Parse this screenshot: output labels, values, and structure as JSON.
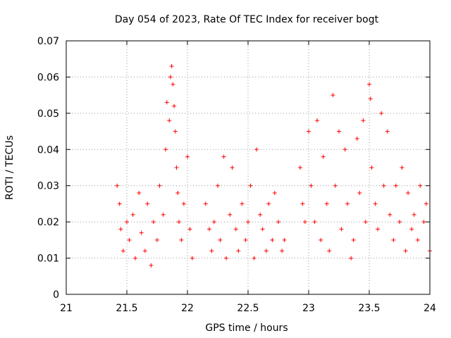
{
  "chart_data": {
    "type": "scatter",
    "title": "Day 054 of 2023, Rate Of TEC Index for receiver bogt",
    "xlabel": "GPS time / hours",
    "ylabel": "ROTI / TECUs",
    "xlim": [
      21,
      24
    ],
    "ylim": [
      0,
      0.07
    ],
    "x_ticks": [
      21,
      21.5,
      22,
      22.5,
      23,
      23.5,
      24
    ],
    "x_tick_labels": [
      "21",
      "21.5",
      "22",
      "22.5",
      "23",
      "23.5",
      "24"
    ],
    "y_ticks": [
      0,
      0.01,
      0.02,
      0.03,
      0.04,
      0.05,
      0.06,
      0.07
    ],
    "y_tick_labels": [
      "0",
      "0.01",
      "0.02",
      "0.03",
      "0.04",
      "0.05",
      "0.06",
      "0.07"
    ],
    "grid": true,
    "marker": "+",
    "color": "#ff0000",
    "series": [
      {
        "name": "ROTI",
        "x": [
          21.42,
          21.44,
          21.45,
          21.47,
          21.5,
          21.52,
          21.55,
          21.57,
          21.6,
          21.62,
          21.65,
          21.67,
          21.7,
          21.72,
          21.75,
          21.77,
          21.8,
          21.82,
          21.83,
          21.85,
          21.86,
          21.87,
          21.88,
          21.89,
          21.9,
          21.91,
          21.92,
          21.93,
          21.95,
          21.97,
          22.0,
          22.02,
          22.04,
          22.15,
          22.18,
          22.2,
          22.22,
          22.25,
          22.27,
          22.3,
          22.32,
          22.35,
          22.37,
          22.4,
          22.42,
          22.45,
          22.48,
          22.5,
          22.52,
          22.55,
          22.57,
          22.6,
          22.62,
          22.65,
          22.67,
          22.7,
          22.72,
          22.75,
          22.78,
          22.8,
          22.93,
          22.95,
          22.97,
          23.0,
          23.02,
          23.05,
          23.07,
          23.1,
          23.12,
          23.15,
          23.17,
          23.2,
          23.22,
          23.25,
          23.27,
          23.3,
          23.32,
          23.35,
          23.37,
          23.4,
          23.42,
          23.45,
          23.47,
          23.5,
          23.51,
          23.52,
          23.55,
          23.57,
          23.6,
          23.62,
          23.65,
          23.67,
          23.7,
          23.72,
          23.75,
          23.77,
          23.8,
          23.82,
          23.85,
          23.87,
          23.9,
          23.92,
          23.95,
          23.97,
          24.0
        ],
        "y": [
          0.03,
          0.025,
          0.018,
          0.012,
          0.02,
          0.015,
          0.022,
          0.01,
          0.028,
          0.017,
          0.012,
          0.025,
          0.008,
          0.02,
          0.015,
          0.03,
          0.022,
          0.04,
          0.053,
          0.048,
          0.06,
          0.063,
          0.058,
          0.052,
          0.045,
          0.035,
          0.028,
          0.02,
          0.015,
          0.025,
          0.038,
          0.018,
          0.01,
          0.025,
          0.018,
          0.012,
          0.02,
          0.03,
          0.015,
          0.038,
          0.01,
          0.022,
          0.035,
          0.018,
          0.012,
          0.025,
          0.015,
          0.02,
          0.03,
          0.01,
          0.04,
          0.022,
          0.018,
          0.012,
          0.025,
          0.015,
          0.028,
          0.02,
          0.012,
          0.015,
          0.035,
          0.025,
          0.02,
          0.045,
          0.03,
          0.02,
          0.048,
          0.015,
          0.038,
          0.025,
          0.012,
          0.055,
          0.03,
          0.045,
          0.018,
          0.04,
          0.025,
          0.01,
          0.015,
          0.043,
          0.028,
          0.048,
          0.02,
          0.058,
          0.054,
          0.035,
          0.025,
          0.018,
          0.05,
          0.03,
          0.045,
          0.022,
          0.015,
          0.03,
          0.02,
          0.035,
          0.012,
          0.028,
          0.018,
          0.022,
          0.015,
          0.03,
          0.02,
          0.025,
          0.012
        ]
      }
    ]
  }
}
